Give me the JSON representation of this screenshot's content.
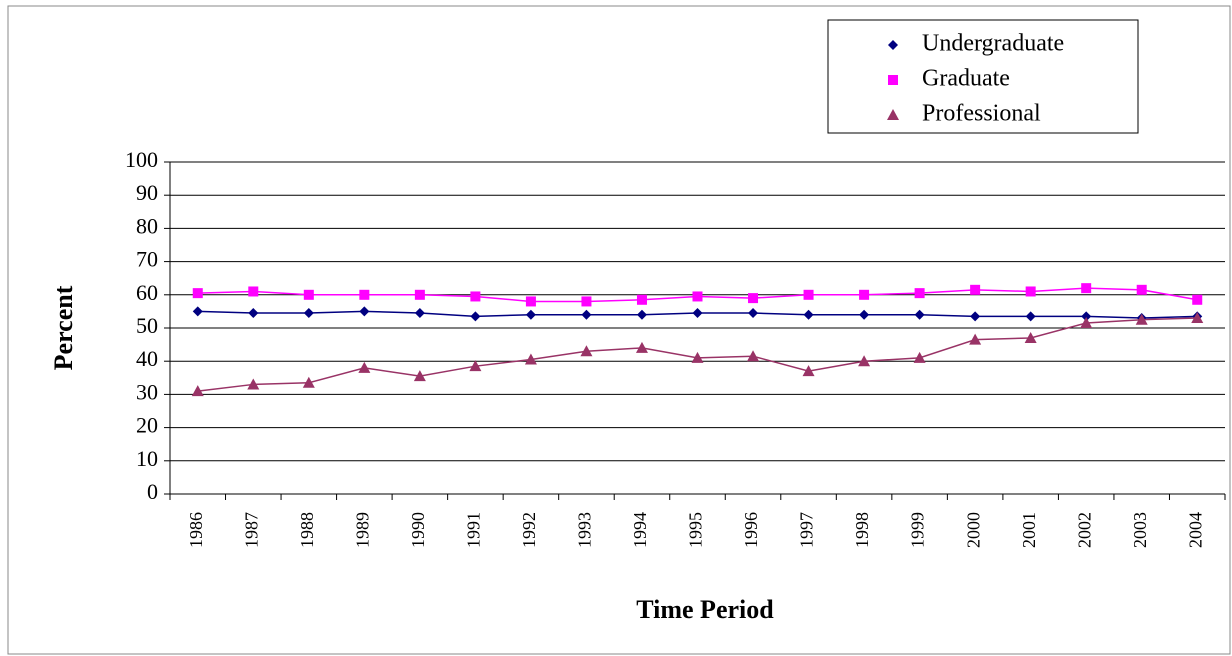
{
  "chart_data": {
    "type": "line",
    "x_label": "Time Period",
    "y_label": "Percent",
    "categories": [
      "1986",
      "1987",
      "1988",
      "1989",
      "1990",
      "1991",
      "1992",
      "1993",
      "1994",
      "1995",
      "1996",
      "1997",
      "1998",
      "1999",
      "2000",
      "2001",
      "2002",
      "2003",
      "2004"
    ],
    "series": [
      {
        "name": "Undergraduate",
        "color": "#000080",
        "marker": "diamond",
        "values": [
          55,
          54.5,
          54.5,
          55,
          54.5,
          53.5,
          54,
          54,
          54,
          54.5,
          54.5,
          54,
          54,
          54,
          53.5,
          53.5,
          53.5,
          53,
          53.5
        ]
      },
      {
        "name": "Graduate",
        "color": "#ff00ff",
        "marker": "square",
        "values": [
          60.5,
          61,
          60,
          60,
          60,
          59.5,
          58,
          58,
          58.5,
          59.5,
          59,
          60,
          60,
          60.5,
          61.5,
          61,
          62,
          61.5,
          58.5
        ]
      },
      {
        "name": "Professional",
        "color": "#993366",
        "marker": "triangle",
        "values": [
          31,
          33,
          33.5,
          38,
          35.5,
          38.5,
          40.5,
          43,
          44,
          41,
          41.5,
          37,
          40,
          41,
          46.5,
          47,
          51.5,
          52.5,
          53
        ]
      }
    ],
    "ylim": [
      0,
      100
    ],
    "yticks": [
      0,
      10,
      20,
      30,
      40,
      50,
      60,
      70,
      80,
      90,
      100
    ],
    "grid": true,
    "legend": "top-right"
  }
}
